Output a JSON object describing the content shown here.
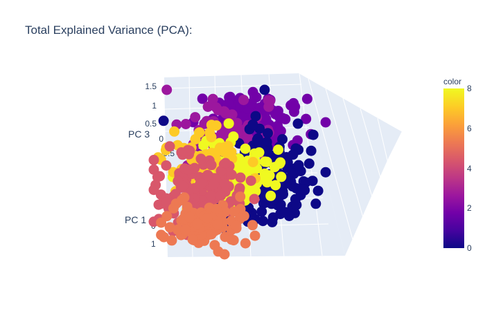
{
  "chart_data": {
    "type": "scatter",
    "title": "Total Explained Variance (PCA):",
    "axes": {
      "x": {
        "title": "PC 1",
        "ticks": [
          "0",
          "1"
        ]
      },
      "y": {
        "title": "",
        "ticks": []
      },
      "z": {
        "title": "PC 3",
        "ticks": [
          "1.5",
          "1",
          "0.5",
          "0",
          "-0.5"
        ]
      }
    },
    "colorbar": {
      "title": "color",
      "range": [
        0,
        8
      ],
      "ticks": [
        "8",
        "6",
        "4",
        "2",
        "0"
      ],
      "colorscale": [
        "#0d0887",
        "#46039f",
        "#7201a8",
        "#9c179e",
        "#bd3786",
        "#d8576b",
        "#ed7953",
        "#fb9f3a",
        "#fdca26",
        "#f0f921"
      ]
    },
    "grid": true,
    "point_groups": [
      {
        "color_value": 8,
        "approx_count": 180
      },
      {
        "color_value": 7,
        "approx_count": 70
      },
      {
        "color_value": 5,
        "approx_count": 110
      },
      {
        "color_value": 4,
        "approx_count": 120
      },
      {
        "color_value": 3,
        "approx_count": 70
      },
      {
        "color_value": 2,
        "approx_count": 160
      },
      {
        "color_value": 0,
        "approx_count": 170
      }
    ]
  }
}
